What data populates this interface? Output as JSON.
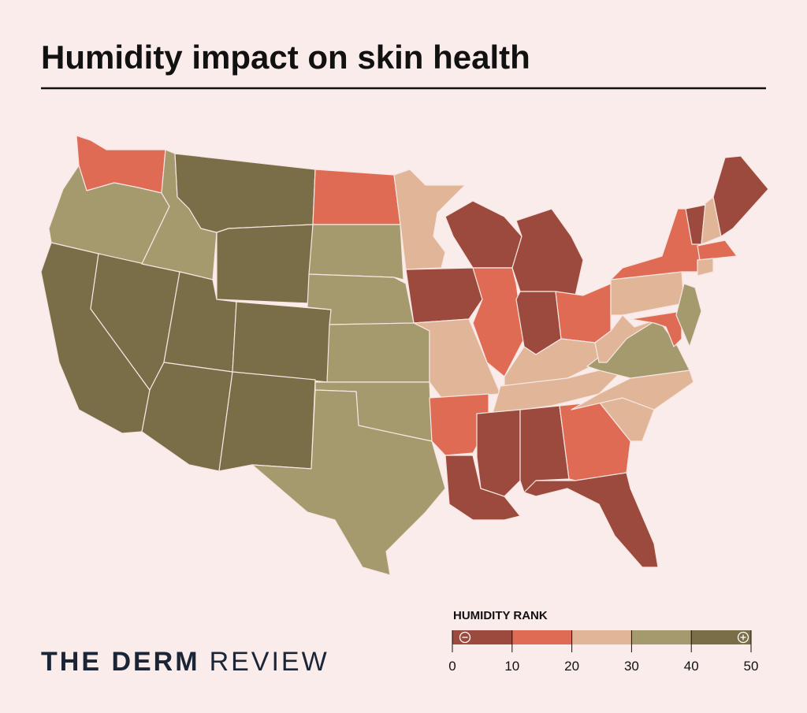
{
  "header": {
    "title": "Humidity impact on skin health"
  },
  "brand": {
    "bold": "THE DERM",
    "light": "REVIEW"
  },
  "legend": {
    "title": "HUMIDITY RANK",
    "ticks": [
      0,
      10,
      20,
      30,
      40,
      50
    ],
    "colors": [
      "#9c4a3d",
      "#e06b55",
      "#e1b698",
      "#a59a6d",
      "#7a6e48"
    ]
  }
}
